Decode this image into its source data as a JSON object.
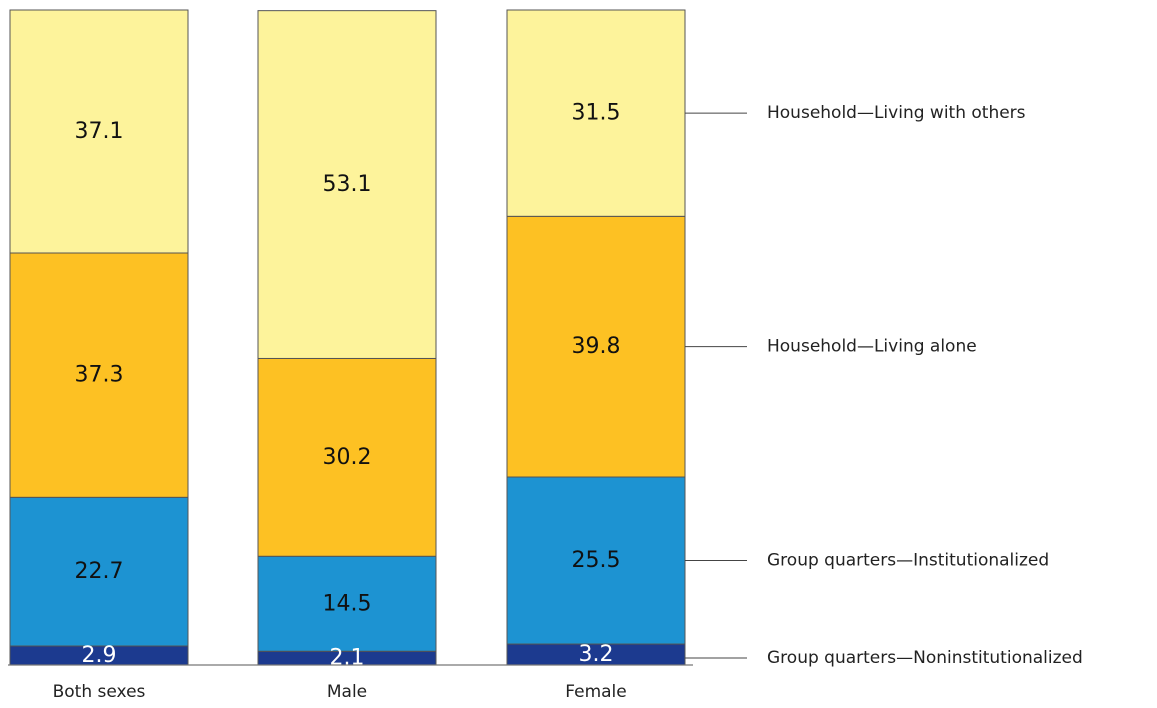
{
  "chart_data": {
    "type": "bar",
    "stacked": true,
    "normalized_to": 100,
    "categories": [
      "Both sexes",
      "Male",
      "Female"
    ],
    "series": [
      {
        "name": "Group quarters—Noninstitutionalized",
        "values": [
          2.9,
          2.1,
          3.2
        ],
        "color": "#1c3a8f",
        "label_color": "#ffffff"
      },
      {
        "name": "Group quarters—Institutionalized",
        "values": [
          22.7,
          14.5,
          25.5
        ],
        "color": "#1d93d2",
        "label_color": "#111111"
      },
      {
        "name": "Household—Living alone",
        "values": [
          37.3,
          30.2,
          39.8
        ],
        "color": "#fdc123",
        "label_color": "#111111"
      },
      {
        "name": "Household—Living with others",
        "values": [
          37.1,
          53.1,
          31.5
        ],
        "color": "#fdf39b",
        "label_color": "#111111"
      }
    ],
    "value_labels": [
      [
        "2.9",
        "2.1",
        "3.2"
      ],
      [
        "22.7",
        "14.5",
        "25.5"
      ],
      [
        "37.3",
        "30.2",
        "39.8"
      ],
      [
        "37.1",
        "53.1",
        "31.5"
      ]
    ],
    "legend_placement": "right, leader lines to Female bar segments",
    "grid": false,
    "title": "",
    "xlabel": "",
    "ylabel": ""
  }
}
